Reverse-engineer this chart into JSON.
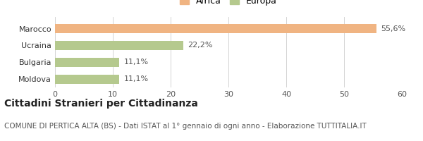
{
  "categories": [
    "Marocco",
    "Ucraina",
    "Bulgaria",
    "Moldova"
  ],
  "values": [
    55.6,
    22.2,
    11.1,
    11.1
  ],
  "bar_colors": [
    "#f0b482",
    "#b5c98e",
    "#b5c98e",
    "#b5c98e"
  ],
  "labels": [
    "55,6%",
    "22,2%",
    "11,1%",
    "11,1%"
  ],
  "legend": [
    {
      "label": "Africa",
      "color": "#f0b482"
    },
    {
      "label": "Europa",
      "color": "#b5c98e"
    }
  ],
  "xlim": [
    0,
    60
  ],
  "xticks": [
    0,
    10,
    20,
    30,
    40,
    50,
    60
  ],
  "title": "Cittadini Stranieri per Cittadinanza",
  "subtitle": "COMUNE DI PERTICA ALTA (BS) - Dati ISTAT al 1° gennaio di ogni anno - Elaborazione TUTTITALIA.IT",
  "title_fontsize": 10,
  "subtitle_fontsize": 7.5,
  "tick_fontsize": 8,
  "label_fontsize": 8,
  "category_fontsize": 8,
  "background_color": "#ffffff",
  "grid_color": "#cccccc"
}
